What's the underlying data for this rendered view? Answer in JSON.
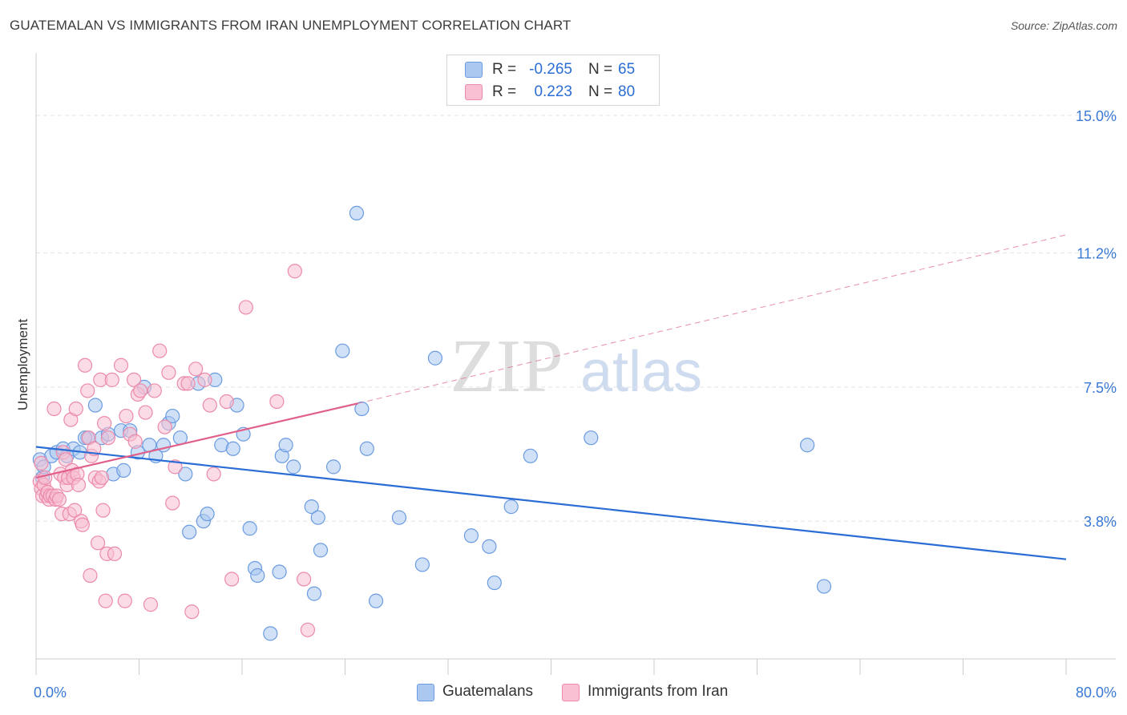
{
  "chart_data": {
    "type": "scatter",
    "title": "GUATEMALAN VS IMMIGRANTS FROM IRAN UNEMPLOYMENT CORRELATION CHART",
    "source": "Source: ZipAtlas.com",
    "xlabel": "",
    "ylabel": "Unemployment",
    "xlim": [
      0,
      80
    ],
    "ylim": [
      0,
      16.5
    ],
    "x_tick_labels": [
      {
        "value": 0,
        "label": "0.0%"
      },
      {
        "value": 80,
        "label": "80.0%"
      }
    ],
    "y_ticks": [
      {
        "value": 3.8,
        "label": "3.8%"
      },
      {
        "value": 7.5,
        "label": "7.5%"
      },
      {
        "value": 11.2,
        "label": "11.2%"
      },
      {
        "value": 15.0,
        "label": "15.0%"
      }
    ],
    "watermark": {
      "zip": "ZIP",
      "atlas": "atlas"
    },
    "legend_top": [
      {
        "r_label": "R =",
        "r_value": "-0.265",
        "n_label": "N =",
        "n_value": "65"
      },
      {
        "r_label": "R =",
        "r_value": "0.223",
        "n_label": "N =",
        "n_value": "80"
      }
    ],
    "series": [
      {
        "name": "Guatemalans",
        "fill": "#aac8f0",
        "stroke": "#6b9be0",
        "line_color": "#2a6dd4",
        "r": -0.265,
        "n": 65,
        "trend": {
          "x0": 0,
          "y0": 5.85,
          "x1": 80,
          "y1": 2.75
        },
        "points": [
          [
            0.3,
            5.5
          ],
          [
            0.5,
            5.0
          ],
          [
            0.6,
            5.3
          ],
          [
            1.2,
            5.6
          ],
          [
            1.6,
            5.7
          ],
          [
            2.1,
            5.8
          ],
          [
            2.4,
            5.6
          ],
          [
            2.9,
            5.8
          ],
          [
            3.4,
            5.7
          ],
          [
            4.0,
            6.1
          ],
          [
            4.6,
            7.0
          ],
          [
            5.1,
            6.1
          ],
          [
            5.6,
            6.2
          ],
          [
            6.0,
            5.1
          ],
          [
            6.6,
            6.3
          ],
          [
            6.8,
            5.2
          ],
          [
            7.3,
            6.3
          ],
          [
            7.9,
            5.7
          ],
          [
            8.4,
            7.5
          ],
          [
            8.8,
            5.9
          ],
          [
            9.3,
            5.6
          ],
          [
            9.9,
            5.9
          ],
          [
            10.3,
            6.5
          ],
          [
            10.6,
            6.7
          ],
          [
            11.2,
            6.1
          ],
          [
            11.6,
            5.1
          ],
          [
            11.9,
            3.5
          ],
          [
            12.6,
            7.6
          ],
          [
            13.0,
            3.8
          ],
          [
            13.3,
            4.0
          ],
          [
            13.9,
            7.7
          ],
          [
            14.4,
            5.9
          ],
          [
            15.3,
            5.8
          ],
          [
            15.6,
            7.0
          ],
          [
            16.1,
            6.2
          ],
          [
            16.6,
            3.6
          ],
          [
            17.0,
            2.5
          ],
          [
            17.2,
            2.3
          ],
          [
            18.2,
            0.7
          ],
          [
            18.9,
            2.4
          ],
          [
            19.1,
            5.6
          ],
          [
            19.4,
            5.9
          ],
          [
            20.0,
            5.3
          ],
          [
            21.4,
            4.2
          ],
          [
            21.6,
            1.8
          ],
          [
            21.9,
            3.9
          ],
          [
            22.1,
            3.0
          ],
          [
            23.1,
            5.3
          ],
          [
            23.8,
            8.5
          ],
          [
            24.9,
            12.3
          ],
          [
            25.3,
            6.9
          ],
          [
            25.7,
            5.8
          ],
          [
            26.4,
            1.6
          ],
          [
            28.2,
            3.9
          ],
          [
            30.0,
            2.6
          ],
          [
            31.0,
            8.3
          ],
          [
            33.8,
            3.4
          ],
          [
            35.2,
            3.1
          ],
          [
            35.6,
            2.1
          ],
          [
            36.9,
            4.2
          ],
          [
            38.4,
            5.6
          ],
          [
            43.1,
            6.1
          ],
          [
            59.9,
            5.9
          ],
          [
            61.2,
            2.0
          ],
          [
            3.8,
            6.1
          ]
        ]
      },
      {
        "name": "Immigrants from Iran",
        "fill": "#f8c0d2",
        "stroke": "#ec8aaa",
        "line_color": "#e0608a",
        "r": 0.223,
        "n": 80,
        "trend": {
          "x0": 0,
          "y0": 5.0,
          "x1": 25,
          "y1": 7.05
        },
        "trend_ext": {
          "x0": 25,
          "y0": 7.05,
          "x1": 80,
          "y1": 11.7
        },
        "points": [
          [
            0.3,
            4.9
          ],
          [
            0.4,
            4.7
          ],
          [
            0.5,
            4.5
          ],
          [
            0.6,
            4.8
          ],
          [
            0.7,
            5.0
          ],
          [
            0.8,
            4.5
          ],
          [
            0.9,
            4.6
          ],
          [
            1.0,
            4.4
          ],
          [
            1.1,
            4.5
          ],
          [
            1.3,
            4.5
          ],
          [
            1.4,
            6.9
          ],
          [
            1.5,
            4.4
          ],
          [
            1.6,
            4.5
          ],
          [
            1.8,
            4.4
          ],
          [
            1.9,
            5.1
          ],
          [
            2.0,
            4.0
          ],
          [
            2.1,
            5.7
          ],
          [
            2.2,
            5.0
          ],
          [
            2.3,
            5.5
          ],
          [
            2.4,
            4.8
          ],
          [
            2.5,
            5.0
          ],
          [
            2.6,
            4.0
          ],
          [
            2.7,
            6.6
          ],
          [
            2.8,
            5.2
          ],
          [
            2.9,
            5.0
          ],
          [
            3.0,
            4.1
          ],
          [
            3.1,
            6.9
          ],
          [
            3.2,
            5.1
          ],
          [
            3.3,
            4.8
          ],
          [
            3.5,
            3.8
          ],
          [
            3.6,
            3.7
          ],
          [
            3.8,
            8.1
          ],
          [
            4.0,
            7.4
          ],
          [
            4.1,
            6.1
          ],
          [
            4.2,
            2.3
          ],
          [
            4.3,
            5.6
          ],
          [
            4.5,
            5.8
          ],
          [
            4.6,
            5.0
          ],
          [
            4.8,
            3.2
          ],
          [
            4.9,
            4.9
          ],
          [
            5.0,
            7.7
          ],
          [
            5.1,
            5.0
          ],
          [
            5.2,
            4.1
          ],
          [
            5.3,
            6.5
          ],
          [
            5.4,
            1.6
          ],
          [
            5.5,
            2.9
          ],
          [
            5.6,
            6.1
          ],
          [
            5.9,
            7.7
          ],
          [
            6.1,
            2.9
          ],
          [
            6.6,
            8.1
          ],
          [
            6.9,
            1.6
          ],
          [
            7.0,
            6.7
          ],
          [
            7.3,
            6.2
          ],
          [
            7.6,
            7.7
          ],
          [
            7.7,
            6.0
          ],
          [
            7.9,
            7.3
          ],
          [
            8.1,
            7.4
          ],
          [
            8.5,
            6.8
          ],
          [
            8.9,
            1.5
          ],
          [
            9.2,
            7.4
          ],
          [
            9.6,
            8.5
          ],
          [
            10.0,
            6.4
          ],
          [
            10.3,
            7.9
          ],
          [
            10.6,
            4.3
          ],
          [
            10.8,
            5.3
          ],
          [
            11.5,
            7.6
          ],
          [
            11.8,
            7.6
          ],
          [
            12.1,
            1.3
          ],
          [
            12.4,
            8.0
          ],
          [
            13.1,
            7.7
          ],
          [
            13.5,
            7.0
          ],
          [
            13.8,
            5.1
          ],
          [
            14.8,
            7.1
          ],
          [
            15.2,
            2.2
          ],
          [
            16.3,
            9.7
          ],
          [
            18.7,
            7.1
          ],
          [
            20.1,
            10.7
          ],
          [
            20.8,
            2.2
          ],
          [
            21.1,
            0.8
          ],
          [
            0.4,
            5.4
          ]
        ]
      }
    ]
  }
}
